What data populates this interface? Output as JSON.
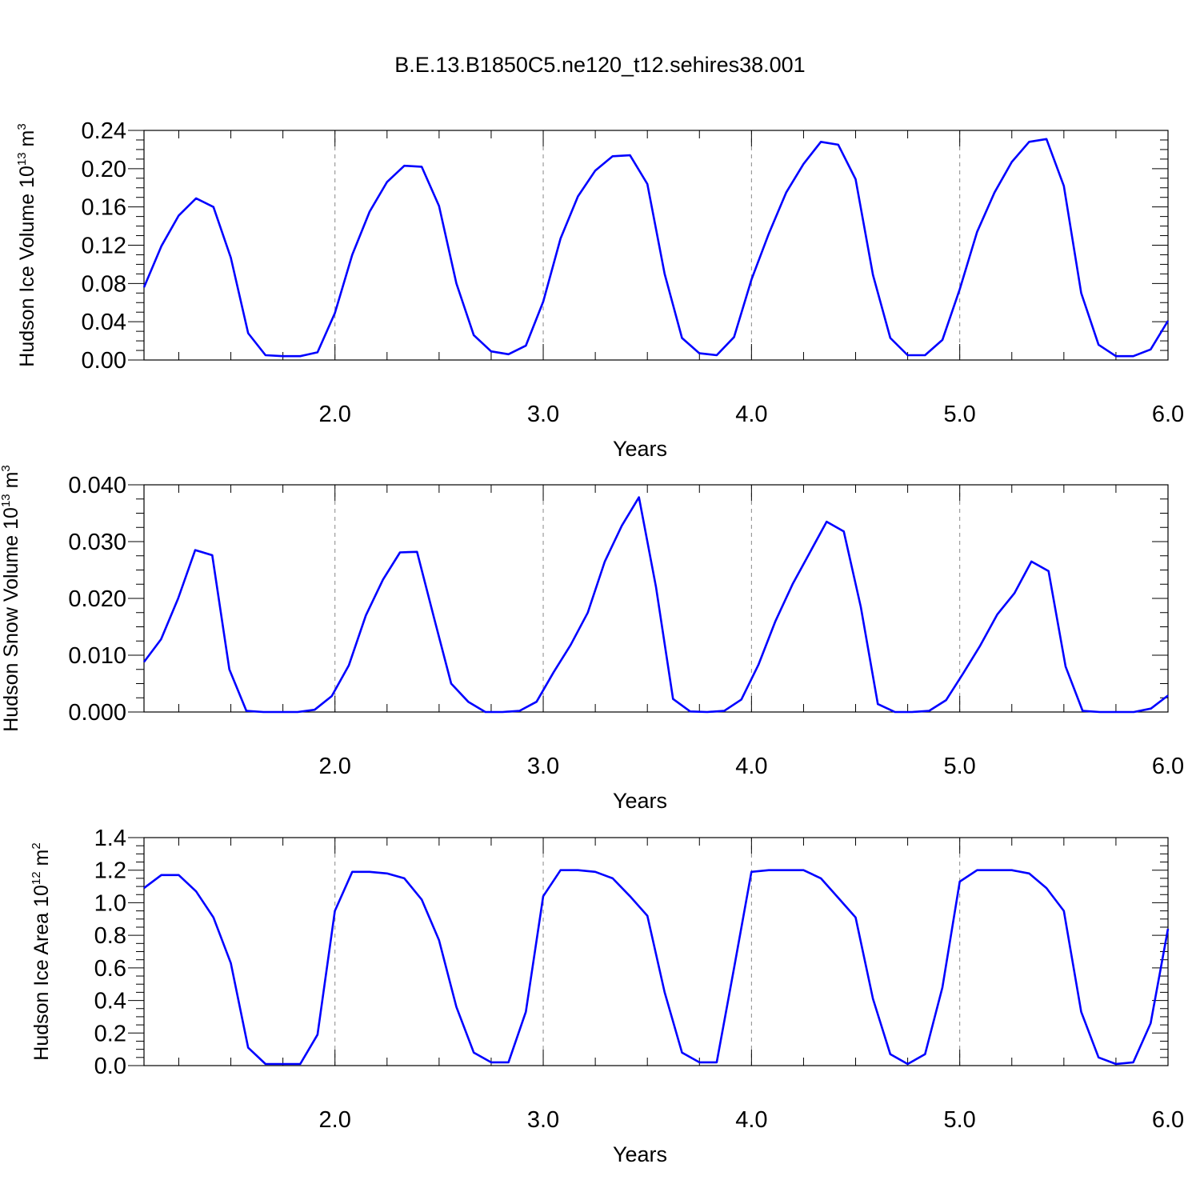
{
  "title": "B.E.13.B1850C5.ne120_t12.sehires38.001",
  "colors": {
    "line": "#0000ff",
    "axis": "#000000",
    "grid": "#888888"
  },
  "chart_data": [
    {
      "type": "line",
      "title": "B.E.13.B1850C5.ne120_t12.sehires38.001",
      "ylabel_main": "Hudson Ice Volume 10",
      "ylabel_sup": "13",
      "ylabel_unit": " m",
      "ylabel_unit_sup": "3",
      "xlabel": "Years",
      "xlim": [
        1.083,
        6.0
      ],
      "ylim": [
        0,
        0.24
      ],
      "yticks": [
        "0.00",
        "0.04",
        "0.08",
        "0.12",
        "0.16",
        "0.20",
        "0.24"
      ],
      "xticks": [
        "2.0",
        "3.0",
        "4.0",
        "5.0",
        "6.0"
      ],
      "grid": "dashed vertical at each year",
      "series": [
        {
          "values": [
            0.076,
            0.119,
            0.151,
            0.169,
            0.16,
            0.107,
            0.028,
            0.005,
            0.004,
            0.004,
            0.008,
            0.049,
            0.11,
            0.155,
            0.186,
            0.203,
            0.202,
            0.161,
            0.08,
            0.026,
            0.009,
            0.006,
            0.015,
            0.061,
            0.127,
            0.171,
            0.198,
            0.213,
            0.214,
            0.184,
            0.09,
            0.023,
            0.007,
            0.005,
            0.024,
            0.084,
            0.132,
            0.175,
            0.205,
            0.228,
            0.225,
            0.189,
            0.089,
            0.023,
            0.005,
            0.005,
            0.021,
            0.074,
            0.134,
            0.175,
            0.207,
            0.228,
            0.231,
            0.182,
            0.07,
            0.016,
            0.004,
            0.004,
            0.011,
            0.041
          ]
        }
      ]
    },
    {
      "type": "line",
      "ylabel_main": "Hudson Snow Volume 10",
      "ylabel_sup": "13",
      "ylabel_unit": " m",
      "ylabel_unit_sup": "3",
      "xlabel": "Years",
      "xlim": [
        1.083,
        6.0
      ],
      "ylim": [
        0,
        0.04
      ],
      "yticks": [
        "0.000",
        "0.010",
        "0.020",
        "0.030",
        "0.040"
      ],
      "xticks": [
        "2.0",
        "3.0",
        "4.0",
        "5.0",
        "6.0"
      ],
      "grid": "dashed vertical at each year",
      "series": [
        {
          "values": [
            0.0088,
            0.0128,
            0.02,
            0.0285,
            0.0276,
            0.0075,
            0.0002,
            0.0,
            0.0,
            0.0,
            0.0004,
            0.0028,
            0.0082,
            0.017,
            0.0233,
            0.0281,
            0.0282,
            0.0165,
            0.005,
            0.0018,
            0.0,
            0.0,
            0.0002,
            0.0018,
            0.007,
            0.0118,
            0.0175,
            0.0265,
            0.0328,
            0.0378,
            0.022,
            0.0023,
            0.0001,
            0.0,
            0.0002,
            0.0022,
            0.0083,
            0.016,
            0.0225,
            0.028,
            0.0335,
            0.0318,
            0.0185,
            0.0014,
            0.0,
            0.0,
            0.0002,
            0.0021,
            0.0068,
            0.0117,
            0.0172,
            0.0209,
            0.0265,
            0.0248,
            0.008,
            0.0002,
            0.0,
            0.0,
            0.0,
            0.0006,
            0.0029
          ]
        }
      ]
    },
    {
      "type": "line",
      "ylabel_main": "Hudson Ice Area 10",
      "ylabel_sup": "12",
      "ylabel_unit": " m",
      "ylabel_unit_sup": "2",
      "xlabel": "Years",
      "xlim": [
        1.083,
        6.0
      ],
      "ylim": [
        0,
        1.4
      ],
      "yticks": [
        "0.0",
        "0.2",
        "0.4",
        "0.6",
        "0.8",
        "1.0",
        "1.2",
        "1.4"
      ],
      "xticks": [
        "2.0",
        "3.0",
        "4.0",
        "5.0",
        "6.0"
      ],
      "grid": "dashed vertical at each year",
      "series": [
        {
          "values": [
            1.09,
            1.17,
            1.17,
            1.07,
            0.91,
            0.63,
            0.11,
            0.01,
            0.01,
            0.01,
            0.19,
            0.95,
            1.19,
            1.19,
            1.18,
            1.15,
            1.02,
            0.77,
            0.36,
            0.08,
            0.02,
            0.02,
            0.33,
            1.04,
            1.2,
            1.2,
            1.19,
            1.15,
            1.04,
            0.92,
            0.45,
            0.08,
            0.02,
            0.02,
            0.6,
            1.19,
            1.2,
            1.2,
            1.2,
            1.15,
            1.03,
            0.91,
            0.41,
            0.07,
            0.01,
            0.07,
            0.48,
            1.13,
            1.2,
            1.2,
            1.2,
            1.18,
            1.09,
            0.95,
            0.33,
            0.05,
            0.01,
            0.02,
            0.26,
            0.84
          ]
        }
      ]
    }
  ]
}
